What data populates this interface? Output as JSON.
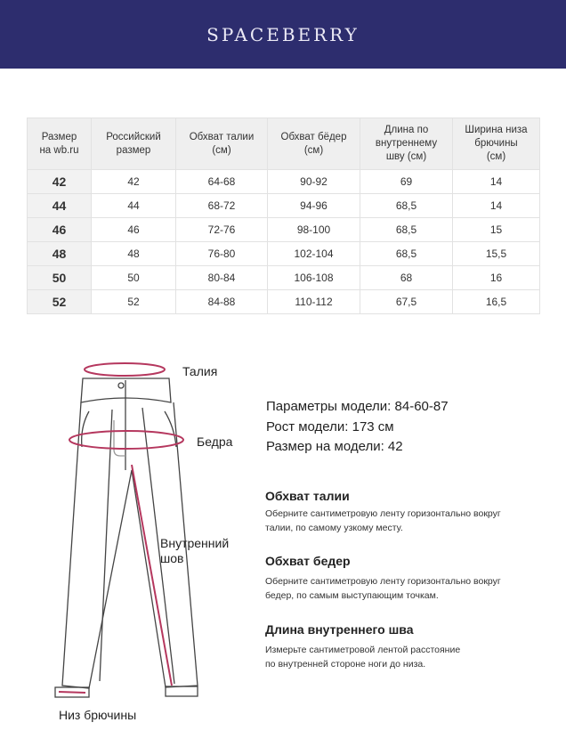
{
  "brand": "SPACEBERRY",
  "table": {
    "headers": [
      [
        "Размер",
        "на wb.ru"
      ],
      [
        "Российский",
        "размер"
      ],
      [
        "Обхват талии",
        "(см)"
      ],
      [
        "Обхват бёдер",
        "(см)"
      ],
      [
        "Длина по",
        "внутреннему",
        "шву (см)"
      ],
      [
        "Ширина низа",
        "брючины",
        "(см)"
      ]
    ],
    "rows": [
      [
        "42",
        "42",
        "64-68",
        "90-92",
        "69",
        "14"
      ],
      [
        "44",
        "44",
        "68-72",
        "94-96",
        "68,5",
        "14"
      ],
      [
        "46",
        "46",
        "72-76",
        "98-100",
        "68,5",
        "15"
      ],
      [
        "48",
        "48",
        "76-80",
        "102-104",
        "68,5",
        "15,5"
      ],
      [
        "50",
        "50",
        "80-84",
        "106-108",
        "68",
        "16"
      ],
      [
        "52",
        "52",
        "84-88",
        "110-112",
        "67,5",
        "16,5"
      ]
    ]
  },
  "model": {
    "params": "Параметры модели: 84-60-87",
    "height": "Рост модели: 173 см",
    "size": "Размер на модели: 42"
  },
  "guide": [
    {
      "title": "Обхват талии",
      "lines": [
        "Оберните сантиметровую ленту горизонтально вокруг",
        "талии, по самому узкому месту."
      ]
    },
    {
      "title": "Обхват бедер",
      "lines": [
        "Оберните сантиметровую ленту горизонтально вокруг",
        "бедер, по самым выступающим точкам."
      ]
    },
    {
      "title": "Длина внутреннего шва",
      "lines": [
        "Измерьте сантиметровой лентой расстояние",
        "по внутренней стороне ноги до низа."
      ]
    }
  ],
  "diagram": {
    "waist": "Талия",
    "hips": "Бедра",
    "inseam": [
      "Внутренний",
      "шов"
    ],
    "hem": "Низ брючины",
    "accent": "#b5375e"
  }
}
